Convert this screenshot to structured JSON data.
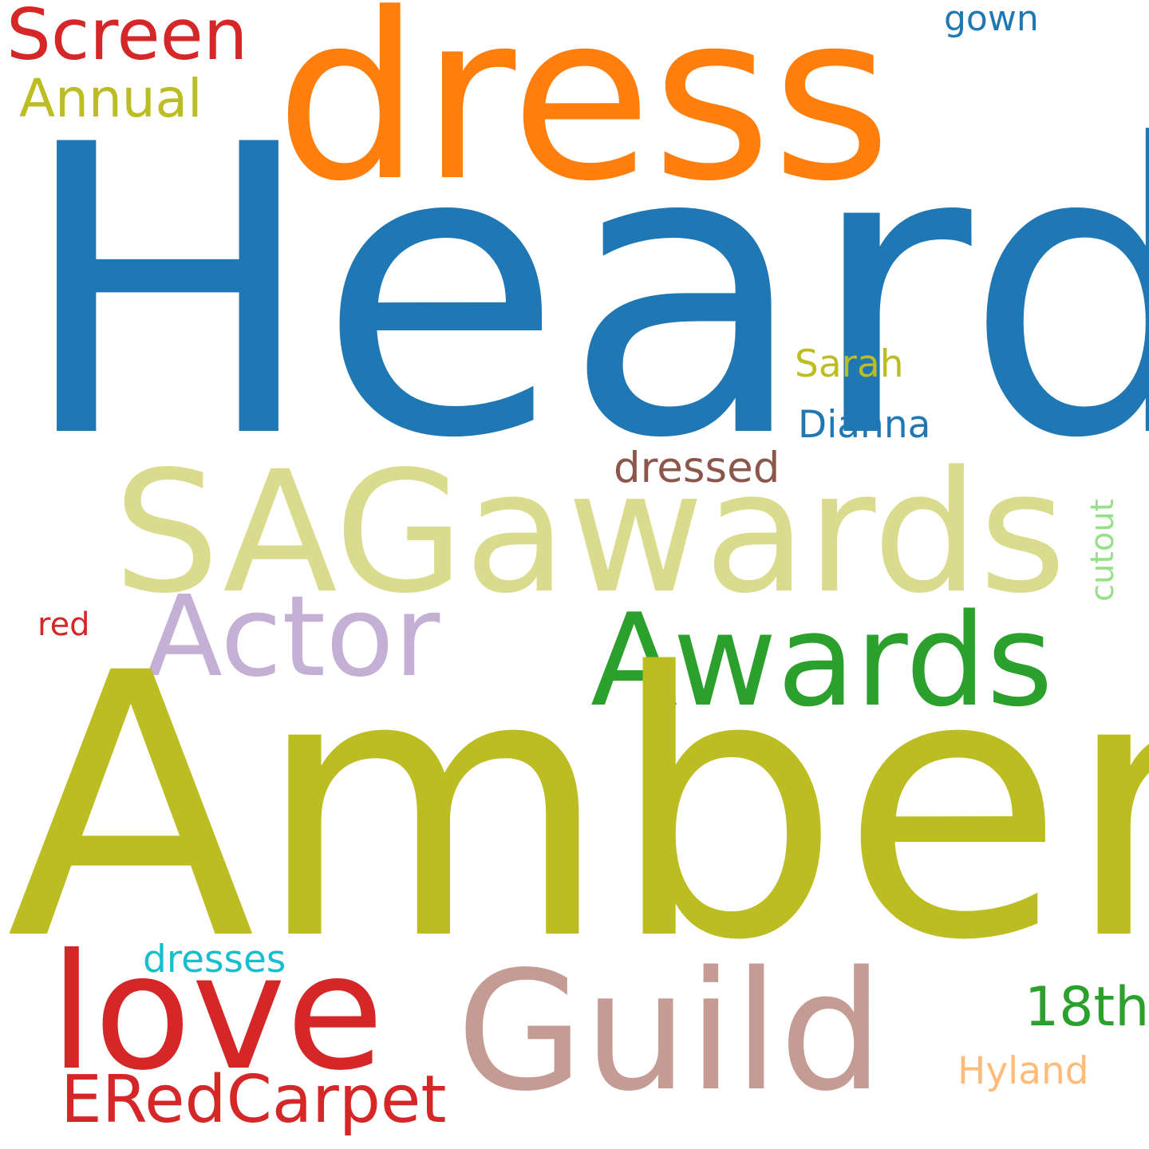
{
  "words": [
    {
      "text": "Heard",
      "color": "#1f77b4"
    },
    {
      "text": "dress",
      "color": "#ff7f0e"
    },
    {
      "text": "Screen",
      "color": "#d62728"
    },
    {
      "text": "gown",
      "color": "#1f77b4"
    },
    {
      "text": "Annual",
      "color": "#bcbd22"
    },
    {
      "text": "Sarah",
      "color": "#bcbd22"
    },
    {
      "text": "Dianna",
      "color": "#1f77b4"
    },
    {
      "text": "dressed",
      "color": "#8c564b"
    },
    {
      "text": "SAGawards",
      "color": "#dbdb8d"
    },
    {
      "text": "cutout",
      "color": "#98df8a"
    },
    {
      "text": "Actor",
      "color": "#c5b0d5"
    },
    {
      "text": "Awards",
      "color": "#2ca02c"
    },
    {
      "text": "red",
      "color": "#d62728"
    },
    {
      "text": "Amber",
      "color": "#bcbd22"
    },
    {
      "text": "dresses",
      "color": "#17becf"
    },
    {
      "text": "love",
      "color": "#d62728"
    },
    {
      "text": "Guild",
      "color": "#c49c94"
    },
    {
      "text": "18th",
      "color": "#2ca02c"
    },
    {
      "text": "Hyland",
      "color": "#ffbb78"
    },
    {
      "text": "ERedCarpet",
      "color": "#d62728"
    }
  ]
}
